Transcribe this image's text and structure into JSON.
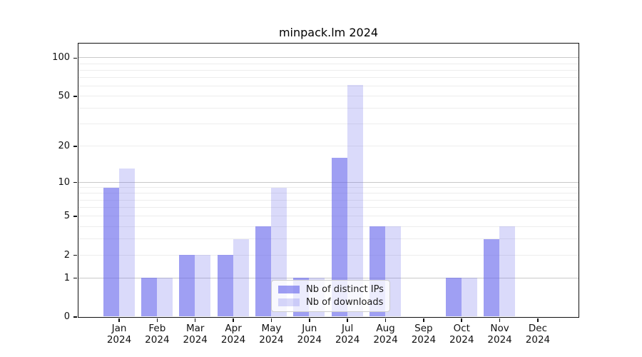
{
  "title": "minpack.lm 2024",
  "chart_data": {
    "type": "bar",
    "title": "minpack.lm 2024",
    "scale": "log1p",
    "categories": [
      "Jan",
      "Feb",
      "Mar",
      "Apr",
      "May",
      "Jun",
      "Jul",
      "Aug",
      "Sep",
      "Oct",
      "Nov",
      "Dec"
    ],
    "xlabel_year": "2024",
    "series": [
      {
        "name": "Nb of distinct IPs",
        "color": "rgba(100,100,235,0.62)",
        "values": [
          9,
          1,
          2,
          2,
          4,
          1,
          16,
          4,
          0,
          1,
          3,
          0
        ]
      },
      {
        "name": "Nb of downloads",
        "color": "rgba(100,100,235,0.24)",
        "values": [
          13,
          1,
          2,
          3,
          9,
          1,
          61,
          4,
          0,
          1,
          4,
          0
        ]
      }
    ],
    "ytick_labels": [
      0,
      1,
      2,
      5,
      10,
      20,
      50,
      100
    ],
    "major_gridlines": [
      1,
      10,
      100
    ],
    "minor_gridlines": [
      2,
      3,
      4,
      5,
      6,
      7,
      8,
      9,
      20,
      30,
      40,
      50,
      60,
      70,
      80,
      90
    ],
    "ylim": [
      0,
      130
    ],
    "grid": "on",
    "legend_position": "lower center",
    "xlabel": "",
    "ylabel": ""
  },
  "colors": {
    "major_grid": "#c9c9c9",
    "minor_grid": "#ededed",
    "axis": "#101010",
    "text": "#111111",
    "legend_border": "#cccccc",
    "legend_bg": "rgba(255,255,255,0.8)"
  }
}
